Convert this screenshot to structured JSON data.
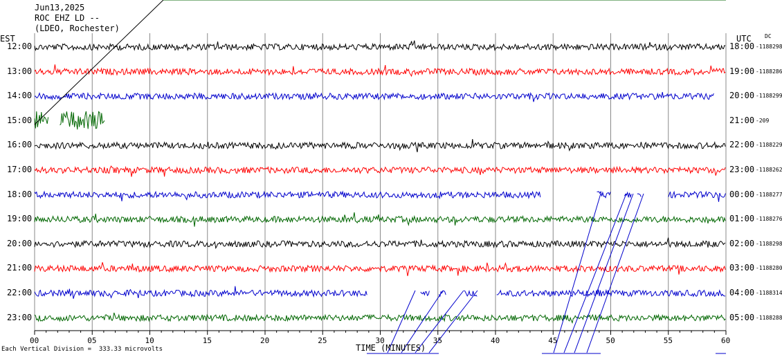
{
  "header": {
    "date": "Jun13,2025",
    "station": "ROC EHZ LD --",
    "network": "(LDEO, Rochester)"
  },
  "axes": {
    "left_tz": "EST",
    "right_tz": "UTC",
    "dc_label": "DC",
    "xlabel": "TIME (MINUTES)",
    "footnote": "Each Vertical Division =  333.33 microvolts"
  },
  "chart_data": {
    "type": "line",
    "title": "",
    "xlabel": "TIME (MINUTES)",
    "ylabel": "",
    "xlim": [
      0,
      60
    ],
    "x_ticks": [
      "00",
      "05",
      "10",
      "15",
      "20",
      "25",
      "30",
      "35",
      "40",
      "45",
      "50",
      "55",
      "60"
    ],
    "grid": true,
    "colors": {
      "black": "#000000",
      "red": "#ff0000",
      "blue": "#0000cc",
      "green": "#006600"
    },
    "rows": [
      {
        "est": "12:00",
        "utc": "18:00",
        "dc": "-1188298",
        "color": "black",
        "segments": [
          [
            0,
            60
          ]
        ]
      },
      {
        "est": "13:00",
        "utc": "19:00",
        "dc": "-1188286",
        "color": "red",
        "segments": [
          [
            0,
            60
          ]
        ]
      },
      {
        "est": "14:00",
        "utc": "20:00",
        "dc": "-1188299",
        "color": "blue",
        "segments": [
          [
            0,
            59
          ]
        ]
      },
      {
        "est": "15:00",
        "utc": "21:00",
        "dc": "-209",
        "color": "green",
        "segments": [
          [
            0,
            1.2
          ],
          [
            2.2,
            6.1
          ]
        ]
      },
      {
        "est": "16:00",
        "utc": "22:00",
        "dc": "-1188229",
        "color": "black",
        "segments": [
          [
            0,
            60
          ]
        ]
      },
      {
        "est": "17:00",
        "utc": "23:00",
        "dc": "-1188262",
        "color": "red",
        "segments": [
          [
            0,
            60
          ]
        ]
      },
      {
        "est": "18:00",
        "utc": "00:00",
        "dc": "-1188277",
        "color": "blue",
        "segments": [
          [
            0,
            43.9
          ],
          [
            48.8,
            50
          ],
          [
            51.2,
            51.8
          ],
          [
            52.3,
            52.7
          ],
          [
            55,
            60
          ]
        ]
      },
      {
        "est": "19:00",
        "utc": "01:00",
        "dc": "-1188276",
        "color": "green",
        "segments": [
          [
            0,
            60
          ]
        ]
      },
      {
        "est": "20:00",
        "utc": "02:00",
        "dc": "-1188298",
        "color": "black",
        "segments": [
          [
            0,
            60
          ]
        ]
      },
      {
        "est": "21:00",
        "utc": "03:00",
        "dc": "-1188280",
        "color": "red",
        "segments": [
          [
            0,
            60
          ]
        ]
      },
      {
        "est": "22:00",
        "utc": "04:00",
        "dc": "-1188314",
        "color": "blue",
        "segments": [
          [
            0,
            28.9
          ],
          [
            33.5,
            34.3
          ],
          [
            35.1,
            35.7
          ],
          [
            37.3,
            38.4
          ],
          [
            40.1,
            60
          ]
        ]
      },
      {
        "est": "23:00",
        "utc": "05:00",
        "dc": "-1188288",
        "color": "green",
        "segments": [
          [
            0,
            60
          ]
        ]
      }
    ]
  }
}
